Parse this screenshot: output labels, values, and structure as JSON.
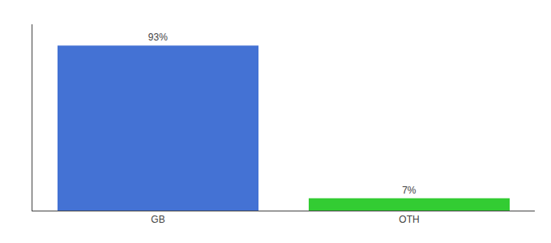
{
  "chart_data": {
    "type": "bar",
    "categories": [
      "GB",
      "OTH"
    ],
    "values": [
      93,
      7
    ],
    "value_labels": [
      "93%",
      "7%"
    ],
    "colors": [
      "#4472d4",
      "#33cc33"
    ],
    "ylim": [
      0,
      105
    ],
    "grid": false,
    "data_labels": true,
    "tick_labels": "x"
  }
}
